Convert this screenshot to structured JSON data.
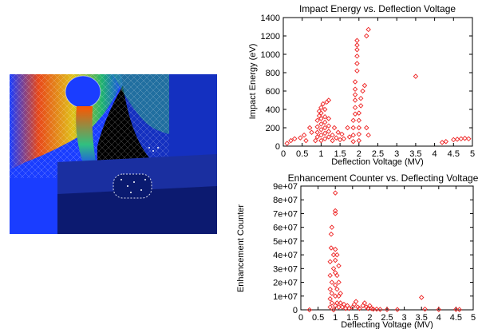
{
  "image": {
    "description_icon": "simulation-render-icon",
    "colors": {
      "background": "#000000",
      "mesh_blue": "#1a3dff",
      "hot": "#ff4a00",
      "mid": "#f6d000",
      "cool": "#20c060"
    }
  },
  "chart_data": [
    {
      "type": "scatter",
      "title": "Impact Energy vs. Deflection Voltage",
      "xlabel": "Deflection Voltage (MV)",
      "ylabel": "Impact Energy (eV)",
      "xlim": [
        0,
        5
      ],
      "ylim": [
        0,
        1400
      ],
      "xticks": [
        "0",
        "0.5",
        "1",
        "1.5",
        "2",
        "2.5",
        "3",
        "3.5",
        "4",
        "4.5",
        "5"
      ],
      "yticks": [
        "0",
        "200",
        "400",
        "600",
        "800",
        "1000",
        "1200",
        "1400"
      ],
      "grid": false,
      "marker_color": "#ee2222",
      "points": [
        [
          0.1,
          30
        ],
        [
          0.2,
          60
        ],
        [
          0.3,
          80
        ],
        [
          0.45,
          90
        ],
        [
          0.55,
          120
        ],
        [
          0.6,
          60
        ],
        [
          0.7,
          200
        ],
        [
          0.75,
          150
        ],
        [
          0.85,
          60
        ],
        [
          0.9,
          100
        ],
        [
          0.9,
          150
        ],
        [
          0.9,
          210
        ],
        [
          0.9,
          280
        ],
        [
          0.95,
          330
        ],
        [
          0.95,
          380
        ],
        [
          1.0,
          60
        ],
        [
          1.0,
          120
        ],
        [
          1.0,
          180
        ],
        [
          1.0,
          240
        ],
        [
          1.0,
          300
        ],
        [
          1.0,
          360
        ],
        [
          1.0,
          420
        ],
        [
          1.05,
          460
        ],
        [
          1.1,
          80
        ],
        [
          1.1,
          140
        ],
        [
          1.1,
          200
        ],
        [
          1.1,
          260
        ],
        [
          1.1,
          320
        ],
        [
          1.1,
          400
        ],
        [
          1.15,
          480
        ],
        [
          1.2,
          100
        ],
        [
          1.2,
          160
        ],
        [
          1.2,
          220
        ],
        [
          1.2,
          300
        ],
        [
          1.2,
          500
        ],
        [
          1.3,
          60
        ],
        [
          1.3,
          120
        ],
        [
          1.35,
          200
        ],
        [
          1.4,
          90
        ],
        [
          1.45,
          150
        ],
        [
          1.5,
          70
        ],
        [
          1.55,
          130
        ],
        [
          1.6,
          80
        ],
        [
          1.7,
          200
        ],
        [
          1.75,
          100
        ],
        [
          1.85,
          50
        ],
        [
          1.85,
          120
        ],
        [
          1.85,
          200
        ],
        [
          1.85,
          280
        ],
        [
          1.9,
          350
        ],
        [
          1.9,
          420
        ],
        [
          1.9,
          500
        ],
        [
          1.9,
          560
        ],
        [
          1.9,
          620
        ],
        [
          1.9,
          700
        ],
        [
          1.95,
          820
        ],
        [
          1.95,
          900
        ],
        [
          1.95,
          980
        ],
        [
          1.95,
          1050
        ],
        [
          1.95,
          1100
        ],
        [
          1.95,
          1150
        ],
        [
          2.0,
          60
        ],
        [
          2.0,
          130
        ],
        [
          2.0,
          200
        ],
        [
          2.0,
          280
        ],
        [
          2.0,
          360
        ],
        [
          2.05,
          440
        ],
        [
          2.05,
          520
        ],
        [
          2.1,
          600
        ],
        [
          2.15,
          660
        ],
        [
          2.2,
          1200
        ],
        [
          2.25,
          1270
        ],
        [
          2.2,
          200
        ],
        [
          2.25,
          120
        ],
        [
          3.5,
          760
        ],
        [
          4.2,
          40
        ],
        [
          4.3,
          50
        ],
        [
          4.5,
          70
        ],
        [
          4.6,
          75
        ],
        [
          4.7,
          80
        ],
        [
          4.8,
          85
        ],
        [
          4.9,
          80
        ]
      ]
    },
    {
      "type": "scatter",
      "title": "Enhancement Counter vs. Deflecting Voltage",
      "xlabel": "Deflecting Voltage (MV)",
      "ylabel": "Enhancement Counter",
      "xlim": [
        0,
        5
      ],
      "ylim": [
        0,
        90000000
      ],
      "xticks": [
        "0",
        "0.5",
        "1",
        "1.5",
        "2",
        "2.5",
        "3",
        "3.5",
        "4",
        "4.5",
        "5"
      ],
      "yticks": [
        "0",
        "1e+07",
        "2e+07",
        "3e+07",
        "4e+07",
        "5e+07",
        "6e+07",
        "7e+07",
        "8e+07",
        "9e+07"
      ],
      "grid": false,
      "marker_color": "#ee2222",
      "points": [
        [
          0.25,
          0
        ],
        [
          0.85,
          2000000
        ],
        [
          0.85,
          8000000
        ],
        [
          0.85,
          15000000
        ],
        [
          0.85,
          25000000
        ],
        [
          0.85,
          35000000
        ],
        [
          0.88,
          45000000
        ],
        [
          0.88,
          55000000
        ],
        [
          0.9,
          60000000
        ],
        [
          0.9,
          5000000
        ],
        [
          0.9,
          12000000
        ],
        [
          0.9,
          20000000
        ],
        [
          0.95,
          30000000
        ],
        [
          0.95,
          40000000
        ],
        [
          0.95,
          0
        ],
        [
          1.0,
          3000000
        ],
        [
          1.0,
          10000000
        ],
        [
          1.0,
          18000000
        ],
        [
          1.0,
          27000000
        ],
        [
          1.0,
          36000000
        ],
        [
          1.0,
          44000000
        ],
        [
          1.0,
          70000000
        ],
        [
          1.0,
          72000000
        ],
        [
          1.0,
          85000000
        ],
        [
          1.05,
          5000000
        ],
        [
          1.05,
          15000000
        ],
        [
          1.05,
          25000000
        ],
        [
          1.05,
          40000000
        ],
        [
          1.1,
          2000000
        ],
        [
          1.1,
          10000000
        ],
        [
          1.1,
          20000000
        ],
        [
          1.1,
          32000000
        ],
        [
          1.15,
          5000000
        ],
        [
          1.15,
          12000000
        ],
        [
          1.2,
          2000000
        ],
        [
          1.25,
          4000000
        ],
        [
          1.3,
          1000000
        ],
        [
          1.35,
          3000000
        ],
        [
          1.4,
          1000000
        ],
        [
          1.5,
          2000000
        ],
        [
          1.55,
          4000000
        ],
        [
          1.6,
          6000000
        ],
        [
          1.65,
          2000000
        ],
        [
          1.7,
          1000000
        ],
        [
          1.8,
          3000000
        ],
        [
          1.85,
          5000000
        ],
        [
          1.9,
          2000000
        ],
        [
          1.95,
          1000000
        ],
        [
          2.0,
          3000000
        ],
        [
          2.05,
          1000000
        ],
        [
          2.1,
          500000
        ],
        [
          2.2,
          500000
        ],
        [
          2.3,
          300000
        ],
        [
          2.5,
          200000
        ],
        [
          2.8,
          200000
        ],
        [
          3.5,
          9000000
        ],
        [
          3.6,
          500000
        ],
        [
          4.0,
          200000
        ],
        [
          4.5,
          300000
        ],
        [
          4.6,
          200000
        ]
      ]
    }
  ]
}
